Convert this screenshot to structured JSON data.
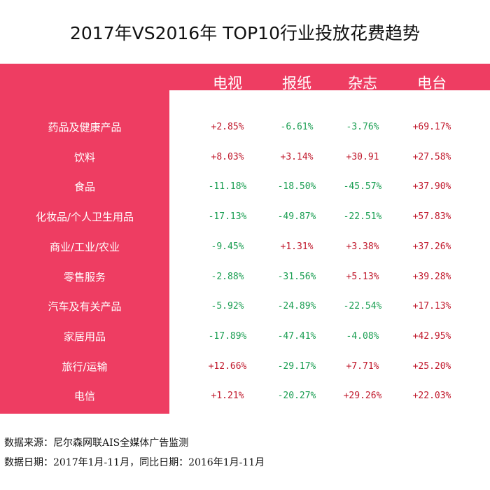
{
  "title": "2017年VS2016年 TOP10行业投放花费趋势",
  "colors": {
    "header_bg": "#ee3d62",
    "positive": "#c0182b",
    "negative": "#1a9e52"
  },
  "footnotes": {
    "source": "数据来源：尼尔森网联AIS全媒体广告监测",
    "dates": "数据日期：2017年1月-11月，同比日期：2016年1月-11月"
  },
  "chart_data": {
    "type": "table",
    "title": "2017年VS2016年 TOP10行业投放花费趋势",
    "columns": [
      "电视",
      "报纸",
      "杂志",
      "电台"
    ],
    "rows": [
      {
        "label": "药品及健康产品",
        "values": [
          "+2.85%",
          "-6.61%",
          "-3.76%",
          "+69.17%"
        ]
      },
      {
        "label": "饮料",
        "values": [
          "+8.03%",
          "+3.14%",
          "+30.91",
          "+27.58%"
        ]
      },
      {
        "label": "食品",
        "values": [
          "-11.18%",
          "-18.50%",
          "-45.57%",
          "+37.90%"
        ]
      },
      {
        "label": "化妆品/个人卫生用品",
        "values": [
          "-17.13%",
          "-49.87%",
          "-22.51%",
          "+57.83%"
        ]
      },
      {
        "label": "商业/工业/农业",
        "values": [
          "-9.45%",
          "+1.31%",
          "+3.38%",
          "+37.26%"
        ]
      },
      {
        "label": "零售服务",
        "values": [
          "-2.88%",
          "-31.56%",
          "+5.13%",
          "+39.28%"
        ]
      },
      {
        "label": "汽车及有关产品",
        "values": [
          "-5.92%",
          "-24.89%",
          "-22.54%",
          "+17.13%"
        ]
      },
      {
        "label": "家居用品",
        "values": [
          "-17.89%",
          "-47.41%",
          "-4.08%",
          "+42.95%"
        ]
      },
      {
        "label": "旅行/运输",
        "values": [
          "+12.66%",
          "-29.17%",
          "+7.71%",
          "+25.20%"
        ]
      },
      {
        "label": "电信",
        "values": [
          "+1.21%",
          "-20.27%",
          "+29.26%",
          "+22.03%"
        ]
      }
    ]
  }
}
